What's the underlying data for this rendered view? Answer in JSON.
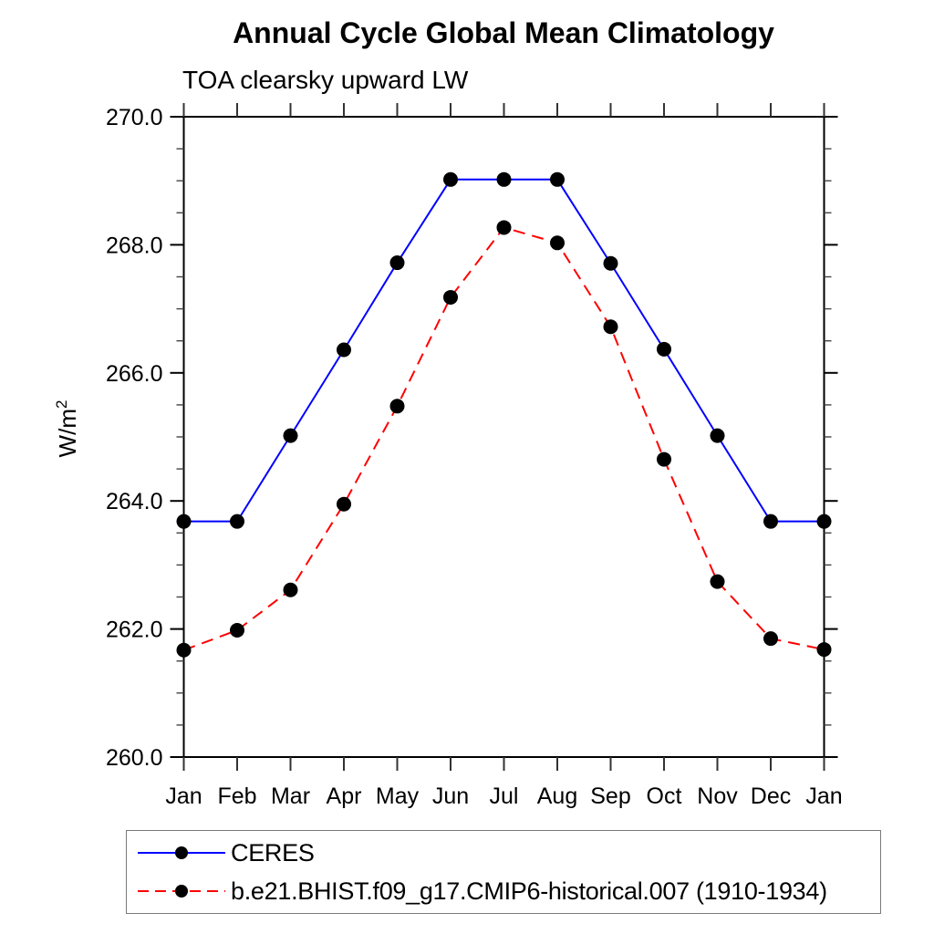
{
  "header": {
    "title": "Annual Cycle Global Mean Climatology",
    "subtitle": "TOA clearsky upward LW"
  },
  "y_axis": {
    "label": "W/m²",
    "label_base": "W/m",
    "label_sup": "2"
  },
  "chart_data": {
    "type": "line",
    "title": "Annual Cycle Global Mean Climatology",
    "subtitle": "TOA clearsky upward LW",
    "xlabel": "",
    "ylabel": "W/m²",
    "categories": [
      "Jan",
      "Feb",
      "Mar",
      "Apr",
      "May",
      "Jun",
      "Jul",
      "Aug",
      "Sep",
      "Oct",
      "Nov",
      "Dec",
      "Jan"
    ],
    "series": [
      {
        "name": "CERES",
        "color": "#0000ff",
        "line_style": "solid",
        "marker": "filled-circle",
        "marker_color": "#000000",
        "values": [
          263.68,
          263.68,
          265.02,
          266.36,
          267.72,
          269.02,
          269.02,
          269.02,
          267.71,
          266.37,
          265.02,
          263.68,
          263.68
        ]
      },
      {
        "name": "b.e21.BHIST.f09_g17.CMIP6-historical.007 (1910-1934)",
        "color": "#ff0000",
        "line_style": "dashed",
        "marker": "filled-circle",
        "marker_color": "#000000",
        "values": [
          261.67,
          261.98,
          262.61,
          263.95,
          265.48,
          267.18,
          268.27,
          268.03,
          266.72,
          264.65,
          262.74,
          261.85,
          261.68
        ]
      }
    ],
    "ylim": [
      260.0,
      270.0
    ],
    "yticks_major": [
      260.0,
      262.0,
      264.0,
      266.0,
      268.0,
      270.0
    ],
    "ytick_labels": [
      "260.0",
      "262.0",
      "264.0",
      "266.0",
      "268.0",
      "270.0"
    ],
    "y_minor_step": 0.5,
    "grid": "off",
    "frame": "box-with-outward-ticks",
    "legend_position": "bottom-left-box"
  }
}
